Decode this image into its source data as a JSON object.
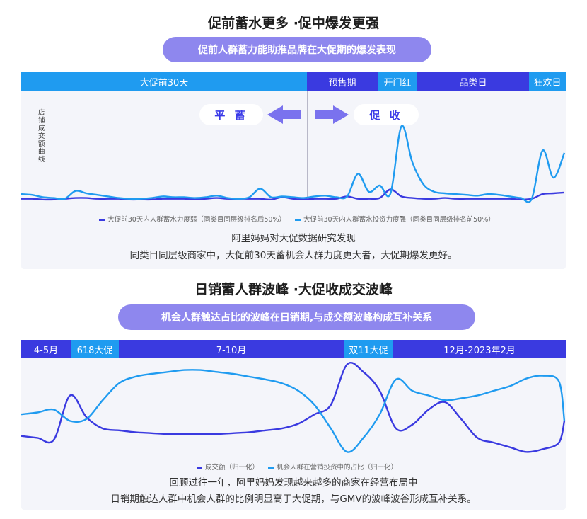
{
  "section1": {
    "title": "促前蓄水更多 ·促中爆发更强",
    "subtitle": "促前人群蓄力能助推品牌在大促期的爆发表现",
    "phases": [
      {
        "label": "大促前30天",
        "color": "#1f9bf0"
      },
      {
        "label": "预售期",
        "color": "#3a3ae0"
      },
      {
        "label": "开门红",
        "color": "#1f9bf0"
      },
      {
        "label": "品类日",
        "color": "#3a3ae0"
      },
      {
        "label": "狂欢日",
        "color": "#1f9bf0"
      }
    ],
    "ylabel": "店铺成交额曲线",
    "left_tag": "平 蓄",
    "right_tag": "促 收",
    "legend": [
      {
        "label": "大促前30天内人群蓄水力度弱（同类目同层级排名后50%）",
        "color": "#3a3ae0"
      },
      {
        "label": "大促前30天内人群蓄水投资力度强（同类目同层级排名前50%）",
        "color": "#1f9bf0"
      }
    ],
    "note_line1": "阿里妈妈对大促数据研究发现",
    "note_line2": "同类目同层级商家中，大促前30天蓄机会人群力度更大者，大促期爆发更好。"
  },
  "section2": {
    "title": "日销蓄人群波峰 ·大促收成交波峰",
    "subtitle": "机会人群触达占比的波峰在日销期,与成交额波峰构成互补关系",
    "phases": [
      {
        "label": "4-5月",
        "color": "#3a3ae0"
      },
      {
        "label": "618大促",
        "color": "#1f9bf0"
      },
      {
        "label": "7-10月",
        "color": "#3a3ae0"
      },
      {
        "label": "双11大促",
        "color": "#1f9bf0"
      },
      {
        "label": "12月-2023年2月",
        "color": "#3a3ae0"
      }
    ],
    "legend": [
      {
        "label": "成交额（归一化）",
        "color": "#3a3ae0"
      },
      {
        "label": "机会人群在营销投资中的占比（归一化）",
        "color": "#1f9bf0"
      }
    ],
    "note_line1": "回顾过往一年，阿里妈妈发现越来越多的商家在经营布局中",
    "note_line2": "日销期触达人群中机会人群的比例明显高于大促期，与GMV的波峰波谷形成互补关系。"
  },
  "chart_data": [
    {
      "type": "line",
      "ylabel": "店铺成交额曲线",
      "ylim": [
        0,
        100
      ],
      "x": [
        0,
        2,
        4,
        6,
        8,
        10,
        12,
        14,
        16,
        18,
        20,
        22,
        24,
        26,
        28,
        30,
        32,
        34,
        36,
        38,
        40,
        42,
        44,
        46,
        48,
        50,
        52,
        54,
        56,
        58,
        60,
        62,
        64,
        66,
        68,
        70,
        72,
        74,
        76,
        78,
        80,
        82,
        84,
        86,
        88,
        90,
        92,
        94,
        96,
        98,
        100
      ],
      "series": [
        {
          "name": "大促前30天内人群蓄水力度弱（同类目同层级排名后50%）",
          "color": "#3a3ae0",
          "values": [
            3,
            3,
            2,
            2,
            3,
            4,
            4,
            3,
            3,
            3,
            2,
            2,
            2,
            3,
            3,
            3,
            2,
            3,
            4,
            3,
            3,
            3,
            3,
            2,
            5,
            3,
            2,
            3,
            3,
            3,
            6,
            3,
            3,
            4,
            15,
            6,
            4,
            3,
            3,
            4,
            3,
            3,
            3,
            3,
            3,
            3,
            2,
            3,
            9,
            10,
            11
          ]
        },
        {
          "name": "大促前30天内人群蓄水投资力度强（同类目同层级排名前50%）",
          "color": "#1f9bf0",
          "values": [
            9,
            8,
            5,
            4,
            3,
            13,
            10,
            8,
            6,
            4,
            3,
            3,
            4,
            6,
            5,
            5,
            4,
            5,
            7,
            4,
            3,
            5,
            16,
            5,
            6,
            5,
            4,
            6,
            7,
            5,
            6,
            35,
            12,
            20,
            10,
            96,
            50,
            22,
            12,
            10,
            9,
            8,
            7,
            9,
            8,
            6,
            4,
            3,
            65,
            30,
            62
          ]
        }
      ]
    },
    {
      "type": "line",
      "categories": [
        "4-5月",
        "618大促",
        "7-10月",
        "双11大促",
        "12月-2023年2月"
      ],
      "ylim": [
        0,
        100
      ],
      "x": [
        0,
        3,
        6,
        9,
        12,
        15,
        18,
        21,
        24,
        27,
        30,
        33,
        36,
        39,
        42,
        45,
        48,
        51,
        54,
        57,
        60,
        63,
        66,
        69,
        72,
        75,
        78,
        81,
        84,
        87,
        90,
        93,
        96,
        99,
        100
      ],
      "series": [
        {
          "name": "成交额（归一化）",
          "color": "#3a3ae0",
          "values": [
            22,
            20,
            18,
            65,
            42,
            30,
            28,
            26,
            25,
            24,
            24,
            24,
            24,
            25,
            26,
            28,
            30,
            35,
            45,
            55,
            98,
            90,
            70,
            30,
            34,
            50,
            58,
            40,
            20,
            15,
            10,
            5,
            8,
            15,
            38
          ]
        },
        {
          "name": "机会人群在营销投资中的占比（归一化）",
          "color": "#1f9bf0",
          "values": [
            45,
            47,
            50,
            38,
            40,
            60,
            78,
            85,
            88,
            90,
            92,
            92,
            90,
            88,
            85,
            82,
            78,
            70,
            55,
            30,
            5,
            20,
            45,
            82,
            70,
            65,
            60,
            62,
            65,
            70,
            75,
            83,
            86,
            80,
            38
          ]
        }
      ]
    }
  ]
}
